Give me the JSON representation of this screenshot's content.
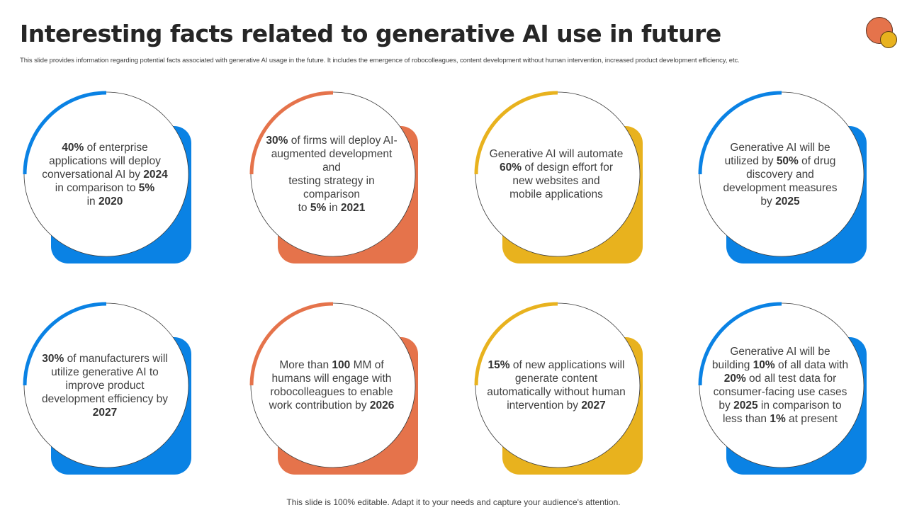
{
  "header": {
    "title": "Interesting facts related to generative AI use in future",
    "subtitle": "This slide provides information regarding potential facts associated with generative AI usage in the future. It includes the emergence of robocolleagues, content development without human intervention, increased product development efficiency, etc."
  },
  "logo": {
    "icon": "two-overlapping-circles-icon",
    "colors": [
      "#e5734b",
      "#e8b21e"
    ]
  },
  "colors": {
    "blue": "#0a82e4",
    "orange": "#e5734b",
    "yellow": "#e8b21e",
    "text": "#404040"
  },
  "cards": [
    {
      "color": "#0a82e4",
      "segments": [
        {
          "t": "40%",
          "b": true
        },
        {
          "t": " of enterprise applications will deploy conversational AI by "
        },
        {
          "t": "2024",
          "b": true
        },
        {
          "t": " in comparison to "
        },
        {
          "t": "5%",
          "b": true
        },
        {
          "t": " in "
        },
        {
          "t": "2020",
          "b": true
        }
      ],
      "lines": [
        "<b>40%</b> of enterprise",
        "applications will deploy",
        "conversational AI by <b>2024</b>",
        "in comparison to <b>5%</b>",
        "in <b>2020</b>"
      ]
    },
    {
      "color": "#e5734b",
      "lines": [
        "<b>30%</b> of firms will deploy AI-",
        "augmented development and",
        "testing strategy in comparison",
        "to <b>5%</b> in <b>2021</b>"
      ]
    },
    {
      "color": "#e8b21e",
      "lines": [
        "Generative AI will automate",
        "<b>60%</b> of design effort for",
        "new websites and",
        "mobile applications"
      ]
    },
    {
      "color": "#0a82e4",
      "lines": [
        "Generative AI will be",
        "utilized by <b>50%</b> of drug",
        "discovery and",
        "development measures",
        "by <b>2025</b>"
      ]
    },
    {
      "color": "#0a82e4",
      "lines": [
        "<b>30%</b> of manufacturers will",
        "utilize generative AI to",
        "improve product",
        "development efficiency by",
        "<b>2027</b>"
      ]
    },
    {
      "color": "#e5734b",
      "lines": [
        "More than <b>100</b> MM of",
        "humans will engage with",
        "robocolleagues to enable",
        "work contribution by <b>2026</b>"
      ]
    },
    {
      "color": "#e8b21e",
      "lines": [
        "<b>15%</b> of new applications will",
        "generate content",
        "automatically without human",
        "intervention by <b>2027</b>"
      ]
    },
    {
      "color": "#0a82e4",
      "lines": [
        "Generative AI will be",
        "building <b>10%</b> of all data with",
        "<b>20%</b> od all test data for",
        "consumer-facing use cases",
        "by <b>2025</b> in comparison to",
        "less than <b>1%</b> at present"
      ]
    }
  ],
  "footer": {
    "text": "This slide is 100% editable. Adapt it to your needs and capture your audience's attention."
  }
}
